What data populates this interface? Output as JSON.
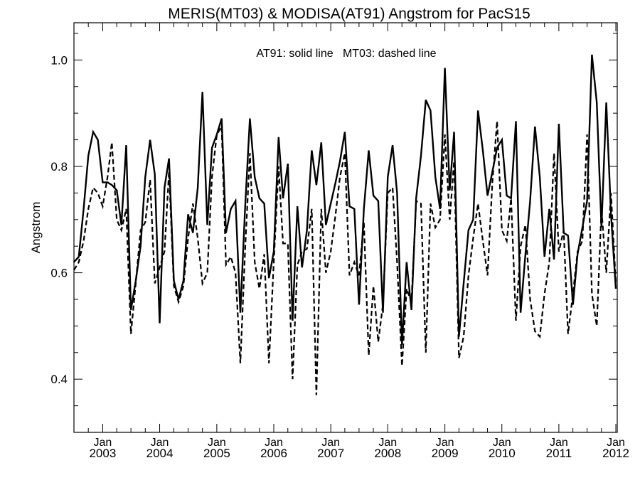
{
  "chart_data": {
    "type": "line",
    "title": "MERIS(MT03) & MODISA(AT91)  Angstrom for PacS15",
    "ylabel": "Angstrom",
    "xlabel": "",
    "annotation": "AT91: solid line   MT03: dashed line",
    "ylim": [
      0.3,
      1.07
    ],
    "y_ticks": [
      "0.4",
      "0.6",
      "0.8",
      "1.0"
    ],
    "xlim": [
      "2002-07-01",
      "2012-01-10"
    ],
    "x_ticks": [
      {
        "month": "Jan",
        "year": "2003",
        "date": "2003-01-01"
      },
      {
        "month": "Jan",
        "year": "2004",
        "date": "2004-01-01"
      },
      {
        "month": "Jan",
        "year": "2005",
        "date": "2005-01-01"
      },
      {
        "month": "Jan",
        "year": "2006",
        "date": "2006-01-01"
      },
      {
        "month": "Jan",
        "year": "2007",
        "date": "2007-01-01"
      },
      {
        "month": "Jan",
        "year": "2008",
        "date": "2008-01-01"
      },
      {
        "month": "Jan",
        "year": "2009",
        "date": "2009-01-01"
      },
      {
        "month": "Jan",
        "year": "2010",
        "date": "2010-01-01"
      },
      {
        "month": "Jan",
        "year": "2011",
        "date": "2011-01-01"
      },
      {
        "month": "Jan",
        "year": "2012",
        "date": "2012-01-01"
      }
    ],
    "grid": false,
    "series": [
      {
        "name": "AT91",
        "style": "solid",
        "color": "#000000",
        "points": [
          [
            "2002-07-01",
            0.62
          ],
          [
            "2002-08-01",
            0.63
          ],
          [
            "2002-09-01",
            0.72
          ],
          [
            "2002-10-01",
            0.82
          ],
          [
            "2002-11-01",
            0.865
          ],
          [
            "2002-12-01",
            0.85
          ],
          [
            "2003-01-01",
            0.77
          ],
          [
            "2003-02-01",
            0.77
          ],
          [
            "2003-03-01",
            0.765
          ],
          [
            "2003-04-01",
            0.755
          ],
          [
            "2003-05-01",
            0.69
          ],
          [
            "2003-06-01",
            0.84
          ],
          [
            "2003-07-01",
            0.53
          ],
          [
            "2003-08-01",
            0.585
          ],
          [
            "2003-09-01",
            0.65
          ],
          [
            "2003-10-01",
            0.78
          ],
          [
            "2003-11-01",
            0.85
          ],
          [
            "2003-12-01",
            0.785
          ],
          [
            "2004-01-01",
            0.505
          ],
          [
            "2004-02-01",
            0.76
          ],
          [
            "2004-03-01",
            0.815
          ],
          [
            "2004-04-01",
            0.585
          ],
          [
            "2004-05-01",
            0.55
          ],
          [
            "2004-06-01",
            0.585
          ],
          [
            "2004-07-01",
            0.71
          ],
          [
            "2004-08-01",
            0.675
          ],
          [
            "2004-09-01",
            0.76
          ],
          [
            "2004-10-01",
            0.94
          ],
          [
            "2004-11-01",
            0.69
          ],
          [
            "2004-12-01",
            0.835
          ],
          [
            "2005-01-01",
            0.86
          ],
          [
            "2005-02-01",
            0.89
          ],
          [
            "2005-03-01",
            0.675
          ],
          [
            "2005-04-01",
            0.72
          ],
          [
            "2005-05-01",
            0.735
          ],
          [
            "2005-06-01",
            0.525
          ],
          [
            "2005-07-01",
            0.72
          ],
          [
            "2005-08-01",
            0.89
          ],
          [
            "2005-09-01",
            0.78
          ],
          [
            "2005-10-01",
            0.74
          ],
          [
            "2005-11-01",
            0.73
          ],
          [
            "2005-12-01",
            0.59
          ],
          [
            "2006-01-01",
            0.64
          ],
          [
            "2006-02-01",
            0.855
          ],
          [
            "2006-03-01",
            0.74
          ],
          [
            "2006-04-01",
            0.805
          ],
          [
            "2006-05-01",
            0.51
          ],
          [
            "2006-06-01",
            0.725
          ],
          [
            "2006-07-01",
            0.61
          ],
          [
            "2006-08-01",
            0.68
          ],
          [
            "2006-09-01",
            0.83
          ],
          [
            "2006-10-01",
            0.765
          ],
          [
            "2006-11-01",
            0.845
          ],
          [
            "2006-12-01",
            0.69
          ],
          [
            "2007-01-01",
            0.73
          ],
          [
            "2007-02-01",
            0.77
          ],
          [
            "2007-03-01",
            0.81
          ],
          [
            "2007-04-01",
            0.865
          ],
          [
            "2007-05-01",
            0.725
          ],
          [
            "2007-06-01",
            0.72
          ],
          [
            "2007-07-01",
            0.54
          ],
          [
            "2007-08-01",
            0.72
          ],
          [
            "2007-09-01",
            0.83
          ],
          [
            "2007-10-01",
            0.745
          ],
          [
            "2007-11-01",
            0.735
          ],
          [
            "2007-12-01",
            0.525
          ],
          [
            "2008-01-01",
            0.78
          ],
          [
            "2008-02-01",
            0.84
          ],
          [
            "2008-03-01",
            0.75
          ],
          [
            "2008-04-01",
            0.465
          ],
          [
            "2008-05-01",
            0.62
          ],
          [
            "2008-06-01",
            0.53
          ],
          [
            "2008-07-01",
            0.74
          ],
          [
            "2008-08-01",
            0.82
          ],
          [
            "2008-09-01",
            0.925
          ],
          [
            "2008-10-01",
            0.905
          ],
          [
            "2008-11-01",
            0.78
          ],
          [
            "2008-12-01",
            0.72
          ],
          [
            "2009-01-01",
            0.985
          ],
          [
            "2009-02-01",
            0.755
          ],
          [
            "2009-03-01",
            0.865
          ],
          [
            "2009-04-01",
            0.48
          ],
          [
            "2009-05-01",
            0.58
          ],
          [
            "2009-06-01",
            0.68
          ],
          [
            "2009-07-01",
            0.7
          ],
          [
            "2009-08-01",
            0.905
          ],
          [
            "2009-09-01",
            0.83
          ],
          [
            "2009-10-01",
            0.745
          ],
          [
            "2009-11-01",
            0.79
          ],
          [
            "2009-12-01",
            0.835
          ],
          [
            "2010-01-01",
            0.85
          ],
          [
            "2010-02-01",
            0.745
          ],
          [
            "2010-03-01",
            0.74
          ],
          [
            "2010-04-01",
            0.885
          ],
          [
            "2010-05-01",
            0.525
          ],
          [
            "2010-06-01",
            0.635
          ],
          [
            "2010-07-01",
            0.735
          ],
          [
            "2010-08-01",
            0.875
          ],
          [
            "2010-09-01",
            0.78
          ],
          [
            "2010-10-01",
            0.63
          ],
          [
            "2010-11-01",
            0.72
          ],
          [
            "2010-12-01",
            0.625
          ],
          [
            "2011-01-01",
            0.88
          ],
          [
            "2011-02-01",
            0.675
          ],
          [
            "2011-03-01",
            0.67
          ],
          [
            "2011-04-01",
            0.54
          ],
          [
            "2011-05-01",
            0.635
          ],
          [
            "2011-06-01",
            0.685
          ],
          [
            "2011-07-01",
            0.735
          ],
          [
            "2011-08-01",
            1.01
          ],
          [
            "2011-09-01",
            0.92
          ],
          [
            "2011-10-01",
            0.685
          ],
          [
            "2011-11-01",
            0.92
          ],
          [
            "2011-12-01",
            0.71
          ],
          [
            "2012-01-01",
            0.57
          ]
        ]
      },
      {
        "name": "MT03",
        "style": "dashed",
        "color": "#000000",
        "points": [
          [
            "2002-07-01",
            0.605
          ],
          [
            "2002-08-01",
            0.62
          ],
          [
            "2002-09-01",
            0.66
          ],
          [
            "2002-10-01",
            0.72
          ],
          [
            "2002-11-01",
            0.76
          ],
          [
            "2002-12-01",
            0.75
          ],
          [
            "2003-01-01",
            0.725
          ],
          [
            "2003-02-01",
            0.78
          ],
          [
            "2003-03-01",
            0.845
          ],
          [
            "2003-04-01",
            0.7
          ],
          [
            "2003-05-01",
            0.68
          ],
          [
            "2003-06-01",
            0.72
          ],
          [
            "2003-07-01",
            0.485
          ],
          [
            "2003-08-01",
            0.58
          ],
          [
            "2003-09-01",
            0.68
          ],
          [
            "2003-10-01",
            0.695
          ],
          [
            "2003-11-01",
            0.775
          ],
          [
            "2003-12-01",
            0.58
          ],
          [
            "2004-01-01",
            0.61
          ],
          [
            "2004-02-01",
            0.64
          ],
          [
            "2004-03-01",
            0.79
          ],
          [
            "2004-04-01",
            0.575
          ],
          [
            "2004-05-01",
            0.545
          ],
          [
            "2004-06-01",
            0.575
          ],
          [
            "2004-07-01",
            0.665
          ],
          [
            "2004-08-01",
            0.73
          ],
          [
            "2004-09-01",
            0.665
          ],
          [
            "2004-10-01",
            0.58
          ],
          [
            "2004-11-01",
            0.6
          ],
          [
            "2004-12-01",
            0.78
          ],
          [
            "2005-01-01",
            0.86
          ],
          [
            "2005-02-01",
            0.875
          ],
          [
            "2005-03-01",
            0.615
          ],
          [
            "2005-04-01",
            0.63
          ],
          [
            "2005-05-01",
            0.6
          ],
          [
            "2005-06-01",
            0.43
          ],
          [
            "2005-07-01",
            0.64
          ],
          [
            "2005-08-01",
            0.825
          ],
          [
            "2005-09-01",
            0.62
          ],
          [
            "2005-10-01",
            0.57
          ],
          [
            "2005-11-01",
            0.635
          ],
          [
            "2005-12-01",
            0.43
          ],
          [
            "2006-01-01",
            0.62
          ],
          [
            "2006-02-01",
            0.8
          ],
          [
            "2006-03-01",
            0.655
          ],
          [
            "2006-04-01",
            0.655
          ],
          [
            "2006-05-01",
            0.4
          ],
          [
            "2006-06-01",
            0.615
          ],
          [
            "2006-07-01",
            0.64
          ],
          [
            "2006-08-01",
            0.645
          ],
          [
            "2006-09-01",
            0.72
          ],
          [
            "2006-10-01",
            0.37
          ],
          [
            "2006-11-01",
            0.72
          ],
          [
            "2006-12-01",
            0.6
          ],
          [
            "2007-01-01",
            0.64
          ],
          [
            "2007-02-01",
            0.71
          ],
          [
            "2007-03-01",
            0.78
          ],
          [
            "2007-04-01",
            0.825
          ],
          [
            "2007-05-01",
            0.595
          ],
          [
            "2007-06-01",
            0.62
          ],
          [
            "2007-07-01",
            0.595
          ],
          [
            "2007-08-01",
            0.695
          ],
          [
            "2007-09-01",
            0.445
          ],
          [
            "2007-10-01",
            0.575
          ],
          [
            "2007-11-01",
            0.47
          ],
          [
            "2007-12-01",
            0.54
          ],
          [
            "2008-01-01",
            0.75
          ],
          [
            "2008-02-01",
            0.76
          ],
          [
            "2008-03-01",
            0.62
          ],
          [
            "2008-04-01",
            0.425
          ],
          [
            "2008-05-01",
            0.57
          ],
          [
            "2008-06-01",
            0.545
          ],
          [
            "2008-07-01",
            0.735
          ],
          [
            "2008-08-01",
            0.73
          ],
          [
            "2008-09-01",
            0.45
          ],
          [
            "2008-10-01",
            0.73
          ],
          [
            "2008-11-01",
            0.685
          ],
          [
            "2008-12-01",
            0.7
          ],
          [
            "2009-01-01",
            0.86
          ],
          [
            "2009-02-01",
            0.7
          ],
          [
            "2009-03-01",
            0.81
          ],
          [
            "2009-04-01",
            0.44
          ],
          [
            "2009-05-01",
            0.48
          ],
          [
            "2009-06-01",
            0.595
          ],
          [
            "2009-07-01",
            0.665
          ],
          [
            "2009-08-01",
            0.73
          ],
          [
            "2009-09-01",
            0.66
          ],
          [
            "2009-10-01",
            0.595
          ],
          [
            "2009-11-01",
            0.77
          ],
          [
            "2009-12-01",
            0.885
          ],
          [
            "2010-01-01",
            0.68
          ],
          [
            "2010-02-01",
            0.66
          ],
          [
            "2010-03-01",
            0.74
          ],
          [
            "2010-04-01",
            0.51
          ],
          [
            "2010-05-01",
            0.65
          ],
          [
            "2010-06-01",
            0.69
          ],
          [
            "2010-07-01",
            0.55
          ],
          [
            "2010-08-01",
            0.49
          ],
          [
            "2010-09-01",
            0.48
          ],
          [
            "2010-10-01",
            0.56
          ],
          [
            "2010-11-01",
            0.62
          ],
          [
            "2010-12-01",
            0.825
          ],
          [
            "2011-01-01",
            0.64
          ],
          [
            "2011-02-01",
            0.68
          ],
          [
            "2011-03-01",
            0.485
          ],
          [
            "2011-04-01",
            0.56
          ],
          [
            "2011-05-01",
            0.64
          ],
          [
            "2011-06-01",
            0.66
          ],
          [
            "2011-07-01",
            0.86
          ],
          [
            "2011-08-01",
            0.56
          ],
          [
            "2011-09-01",
            0.5
          ],
          [
            "2011-10-01",
            0.72
          ],
          [
            "2011-11-01",
            0.6
          ],
          [
            "2011-12-01",
            0.75
          ],
          [
            "2012-01-01",
            0.58
          ]
        ]
      }
    ]
  }
}
